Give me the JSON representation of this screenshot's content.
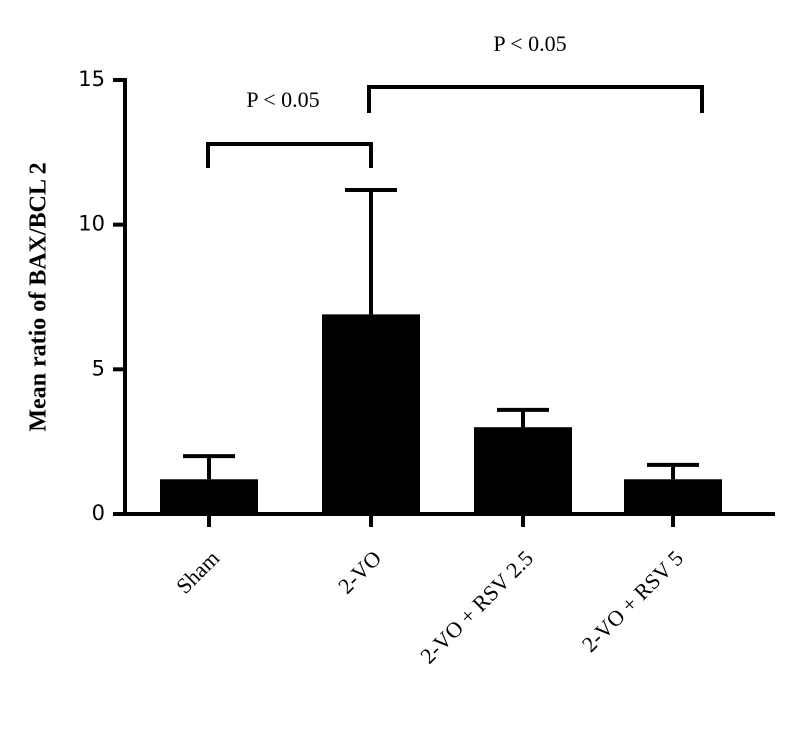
{
  "chart_data": {
    "type": "bar",
    "y_label": "Mean ratio of BAX/BCL 2",
    "categories": [
      "Sham",
      "2-VO",
      "2-VO + RSV 2.5",
      "2-VO + RSV 5"
    ],
    "values": [
      1.2,
      6.9,
      3.0,
      1.2
    ],
    "errors": [
      0.8,
      4.3,
      0.6,
      0.5
    ],
    "color": "#000000",
    "ylim": [
      0,
      15
    ],
    "yticks": [
      0,
      5,
      10,
      15
    ],
    "annotations": [
      "P < 0.05",
      "P < 0.05"
    ]
  }
}
